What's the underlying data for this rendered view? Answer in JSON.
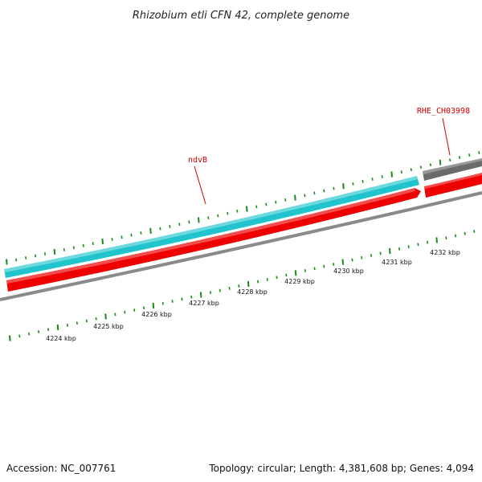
{
  "title": "Rhizobium etli CFN 42, complete genome",
  "colors": {
    "cds_forward": "#20c4cc",
    "cds_reverse": "#ee0000",
    "gene_gray": "#6b6b6b",
    "backbone": "#8a8a8a",
    "tick": "#1a8a1a",
    "label_red": "#cc0000"
  },
  "genes": [
    {
      "name": "ndvB",
      "track": "forward",
      "color_role": "cds_forward"
    },
    {
      "name": "ndvB",
      "track": "reverse",
      "color_role": "cds_reverse",
      "direction": "arrow-right"
    },
    {
      "name": "RHE_CH03998",
      "track": "forward",
      "color_role": "gene_gray"
    },
    {
      "name": "RHE_CH03998",
      "track": "reverse",
      "color_role": "cds_reverse"
    }
  ],
  "gene_labels": [
    "ndvB",
    "RHE_CH03998"
  ],
  "scale": {
    "unit": "kbp",
    "labels": [
      "4224 kbp",
      "4225 kbp",
      "4226 kbp",
      "4227 kbp",
      "4228 kbp",
      "4229 kbp",
      "4230 kbp",
      "4231 kbp",
      "4232 kbp"
    ]
  },
  "footer": {
    "accession": "Accession: NC_007761",
    "summary": "Topology: circular; Length: 4,381,608 bp; Genes: 4,094"
  }
}
